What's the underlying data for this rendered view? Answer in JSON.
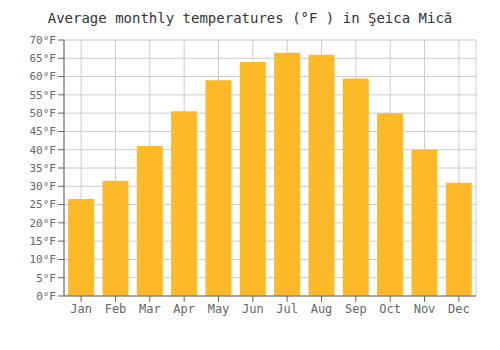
{
  "chart_data": {
    "type": "bar",
    "title": "Average monthly temperatures (°F ) in Şeica Mică",
    "categories": [
      "Jan",
      "Feb",
      "Mar",
      "Apr",
      "May",
      "Jun",
      "Jul",
      "Aug",
      "Sep",
      "Oct",
      "Nov",
      "Dec"
    ],
    "values": [
      26.5,
      31.5,
      41.0,
      50.5,
      59.0,
      64.0,
      66.5,
      66.0,
      59.5,
      50.0,
      40.0,
      31.0
    ],
    "color": "#FDB927",
    "ylim": [
      0,
      70
    ],
    "yticks": [
      {
        "value": 0,
        "label": "0°F"
      },
      {
        "value": 5,
        "label": "5°F"
      },
      {
        "value": 10,
        "label": "10°F"
      },
      {
        "value": 15,
        "label": "15°F"
      },
      {
        "value": 20,
        "label": "20°F"
      },
      {
        "value": 25,
        "label": "25°F"
      },
      {
        "value": 30,
        "label": "30°F"
      },
      {
        "value": 35,
        "label": "35°F"
      },
      {
        "value": 40,
        "label": "40°F"
      },
      {
        "value": 45,
        "label": "45°F"
      },
      {
        "value": 50,
        "label": "50°F"
      },
      {
        "value": 55,
        "label": "55°F"
      },
      {
        "value": 60,
        "label": "60°F"
      },
      {
        "value": 65,
        "label": "65°F"
      },
      {
        "value": 70,
        "label": "70°F"
      }
    ],
    "grid": true
  }
}
